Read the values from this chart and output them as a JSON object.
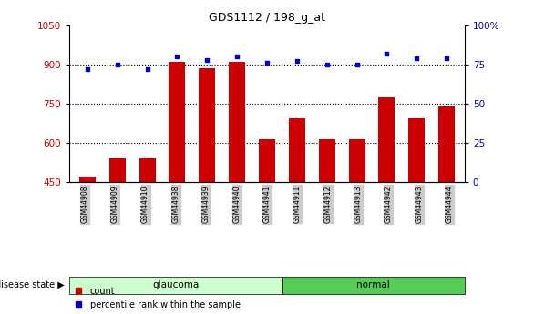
{
  "title": "GDS1112 / 198_g_at",
  "samples": [
    "GSM44908",
    "GSM44909",
    "GSM44910",
    "GSM44938",
    "GSM44939",
    "GSM44940",
    "GSM44941",
    "GSM44911",
    "GSM44912",
    "GSM44913",
    "GSM44942",
    "GSM44943",
    "GSM44944"
  ],
  "groups": [
    "glaucoma",
    "glaucoma",
    "glaucoma",
    "glaucoma",
    "glaucoma",
    "glaucoma",
    "glaucoma",
    "normal",
    "normal",
    "normal",
    "normal",
    "normal",
    "normal"
  ],
  "count_values": [
    470,
    540,
    540,
    910,
    885,
    910,
    615,
    695,
    615,
    615,
    775,
    695,
    740
  ],
  "percentile_values": [
    72,
    75,
    72,
    80,
    78,
    80,
    76,
    77,
    75,
    75,
    82,
    79,
    79
  ],
  "ylim_left": [
    450,
    1050
  ],
  "ylim_right": [
    0,
    100
  ],
  "yticks_left": [
    450,
    600,
    750,
    900,
    1050
  ],
  "yticks_right": [
    0,
    25,
    50,
    75,
    100
  ],
  "bar_color": "#cc0000",
  "dot_color": "#0000cc",
  "glaucoma_color": "#ccffcc",
  "normal_color": "#55cc55",
  "tick_label_bg": "#cccccc",
  "left_axis_color": "#cc0000",
  "right_axis_color": "#0000cc",
  "group_label_glaucoma": "glaucoma",
  "group_label_normal": "normal",
  "disease_state_label": "disease state",
  "legend_count": "count",
  "legend_percentile": "percentile rank within the sample",
  "dotted_line_color": "#000000",
  "bar_width": 0.55,
  "fig_width": 5.86,
  "fig_height": 3.45,
  "dpi": 100
}
